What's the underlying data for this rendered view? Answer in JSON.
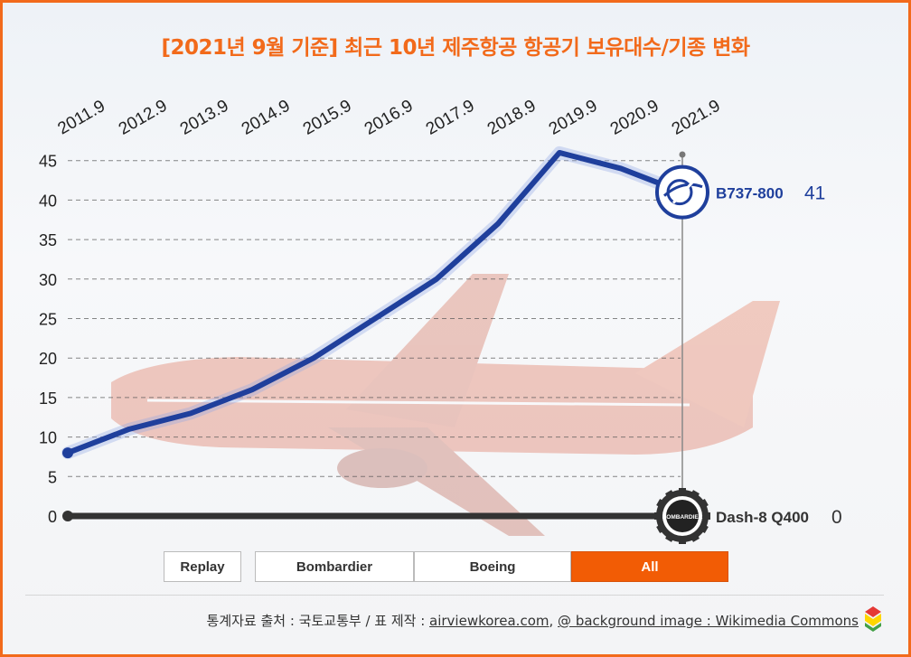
{
  "title": "[2021년 9월 기준] 최근 10년 제주항공 항공기 보유대수/기종 변화",
  "chart_data": {
    "type": "line",
    "title": "[2021년 9월 기준] 최근 10년 제주항공 항공기 보유대수/기종 변화",
    "x": [
      "2011.9",
      "2012.9",
      "2013.9",
      "2014.9",
      "2015.9",
      "2016.9",
      "2017.9",
      "2018.9",
      "2019.9",
      "2020.9",
      "2021.9"
    ],
    "ylim": [
      0,
      45
    ],
    "yticks": [
      "0",
      "5",
      "10",
      "15",
      "20",
      "25",
      "30",
      "35",
      "40",
      "45"
    ],
    "grid": true,
    "series": [
      {
        "name": "B737-800",
        "values": [
          8,
          11,
          13,
          16,
          20,
          25,
          30,
          37,
          46,
          44,
          41
        ],
        "color": "#1f3f9c",
        "end_label": "41"
      },
      {
        "name": "Dash-8 Q400",
        "values": [
          0,
          0,
          0,
          0,
          0,
          0,
          0,
          0,
          0,
          0,
          0
        ],
        "color": "#333333",
        "end_label": "0"
      }
    ],
    "logos": {
      "boeing": "boeing-logo-icon",
      "bombardier": "BOMBARDIER"
    }
  },
  "controls": {
    "replay": "Replay",
    "bombardier": "Bombardier",
    "boeing": "Boeing",
    "all": "All",
    "active_color": "#f25c05"
  },
  "footer": {
    "prefix": "통계자료 출처 : 국토교통부 / 표 제작 : ",
    "maker": "airviewkorea.com",
    "sep": ", ",
    "credit": "@ background image : Wikimedia Commons"
  }
}
